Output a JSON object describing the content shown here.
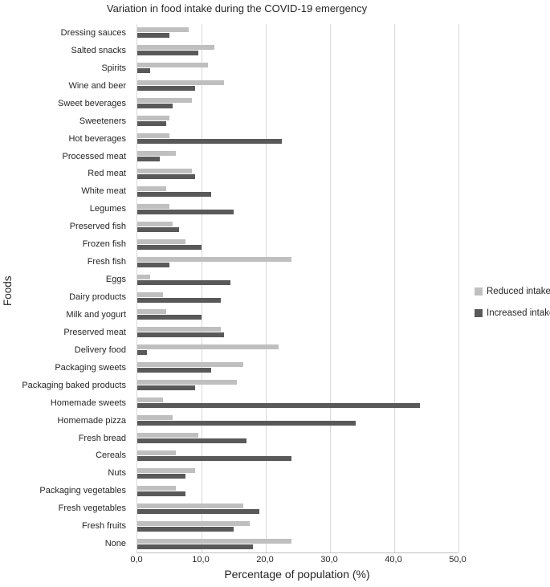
{
  "chart_data": {
    "type": "bar",
    "orientation": "horizontal",
    "title": "Variation in food intake during the COVID-19 emergency",
    "xlabel": "Percentage of population (%)",
    "ylabel": "Foods",
    "xlim": [
      0,
      50
    ],
    "grid": true,
    "legend_position": "right",
    "x_ticks": [
      {
        "value": 0,
        "label": "0,0"
      },
      {
        "value": 10,
        "label": "10,0"
      },
      {
        "value": 20,
        "label": "20,0"
      },
      {
        "value": 30,
        "label": "30,0"
      },
      {
        "value": 40,
        "label": "40,0"
      },
      {
        "value": 50,
        "label": "50,0"
      }
    ],
    "categories": [
      "Dressing sauces",
      "Salted snacks",
      "Spirits",
      "Wine and beer",
      "Sweet beverages",
      "Sweeteners",
      "Hot beverages",
      "Processed meat",
      "Red meat",
      "White meat",
      "Legumes",
      "Preserved fish",
      "Frozen fish",
      "Fresh fish",
      "Eggs",
      "Dairy products",
      "Milk and yogurt",
      "Preserved meat",
      "Delivery food",
      "Packaging sweets",
      "Packaging baked products",
      "Homemade sweets",
      "Homemade pizza",
      "Fresh bread",
      "Cereals",
      "Nuts",
      "Packaging vegetables",
      "Fresh vegetables",
      "Fresh fruits",
      "None"
    ],
    "series": [
      {
        "name": "Reduced intake",
        "color": "#bfbfbf",
        "values": [
          8,
          12,
          11,
          13.5,
          8.5,
          5,
          5,
          6,
          8.5,
          4.5,
          5,
          5.5,
          7.5,
          24,
          2,
          4,
          4.5,
          13,
          22,
          16.5,
          15.5,
          4,
          5.5,
          9.5,
          6,
          9,
          6,
          16.5,
          17.5,
          24
        ]
      },
      {
        "name": "Increased intake",
        "color": "#595959",
        "values": [
          5,
          9.5,
          2,
          9,
          5.5,
          4.5,
          22.5,
          3.5,
          9,
          11.5,
          15,
          6.5,
          10,
          5,
          14.5,
          13,
          10,
          13.5,
          1.5,
          11.5,
          9,
          44,
          34,
          17,
          24,
          7.5,
          7.5,
          19,
          15,
          18
        ]
      }
    ]
  }
}
